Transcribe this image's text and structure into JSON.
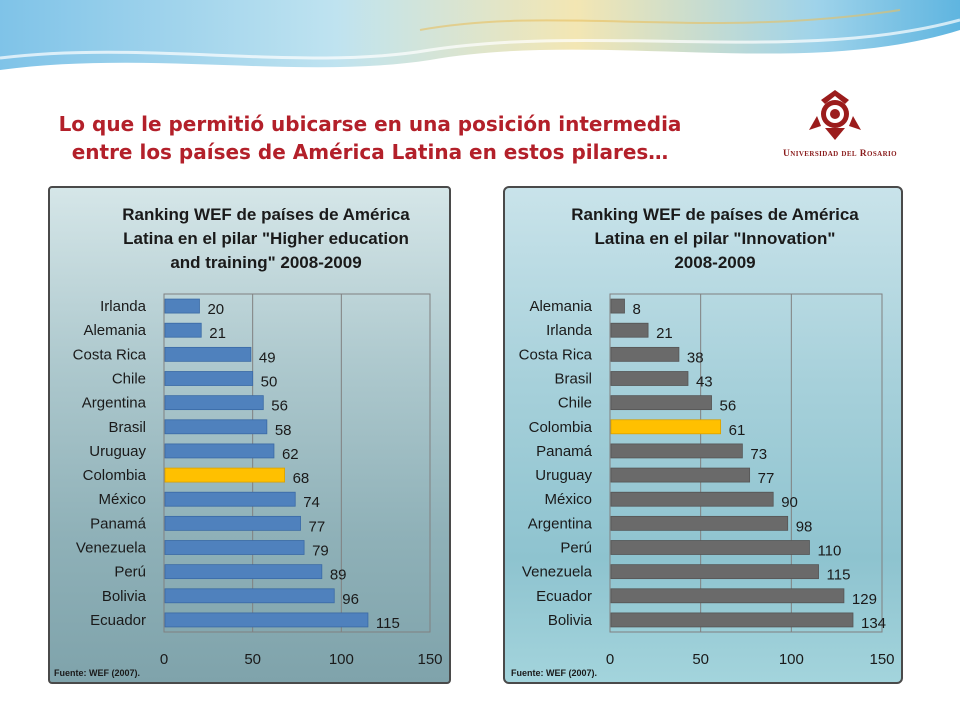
{
  "slide": {
    "title_line1": "Lo que le permitió ubicarse en una posición intermedia",
    "title_line2": "entre los países de América Latina en estos pilares…",
    "logo_text": "Universidad del Rosario"
  },
  "colors": {
    "title": "#b3202a",
    "bar_left": "#4f81bd",
    "bar_right": "#6a6a6a",
    "highlight": "#ffc000"
  },
  "chart_data": [
    {
      "type": "bar",
      "orientation": "horizontal",
      "title_lines": [
        "Ranking WEF de países de América",
        "Latina en el pilar \"Higher education",
        "and training\" 2008-2009"
      ],
      "categories": [
        "Irlanda",
        "Alemania",
        "Costa Rica",
        "Chile",
        "Argentina",
        "Brasil",
        "Uruguay",
        "Colombia",
        "México",
        "Panamá",
        "Venezuela",
        "Perú",
        "Bolivia",
        "Ecuador"
      ],
      "values": [
        20,
        21,
        49,
        50,
        56,
        58,
        62,
        68,
        74,
        77,
        79,
        89,
        96,
        115
      ],
      "highlight": "Colombia",
      "xlim": [
        0,
        150
      ],
      "xticks": [
        0,
        50,
        100,
        150
      ],
      "grid": true,
      "source": "Fuente: WEF (2007)."
    },
    {
      "type": "bar",
      "orientation": "horizontal",
      "title_lines": [
        "Ranking WEF de países de América",
        "Latina en el pilar \"Innovation\"",
        "2008-2009"
      ],
      "categories": [
        "Alemania",
        "Irlanda",
        "Costa Rica",
        "Brasil",
        "Chile",
        "Colombia",
        "Panamá",
        "Uruguay",
        "México",
        "Argentina",
        "Perú",
        "Venezuela",
        "Ecuador",
        "Bolivia"
      ],
      "values": [
        8,
        21,
        38,
        43,
        56,
        61,
        73,
        77,
        90,
        98,
        110,
        115,
        129,
        134
      ],
      "highlight": "Colombia",
      "xlim": [
        0,
        150
      ],
      "xticks": [
        0,
        50,
        100,
        150
      ],
      "grid": true,
      "source": "Fuente: WEF (2007)."
    }
  ]
}
